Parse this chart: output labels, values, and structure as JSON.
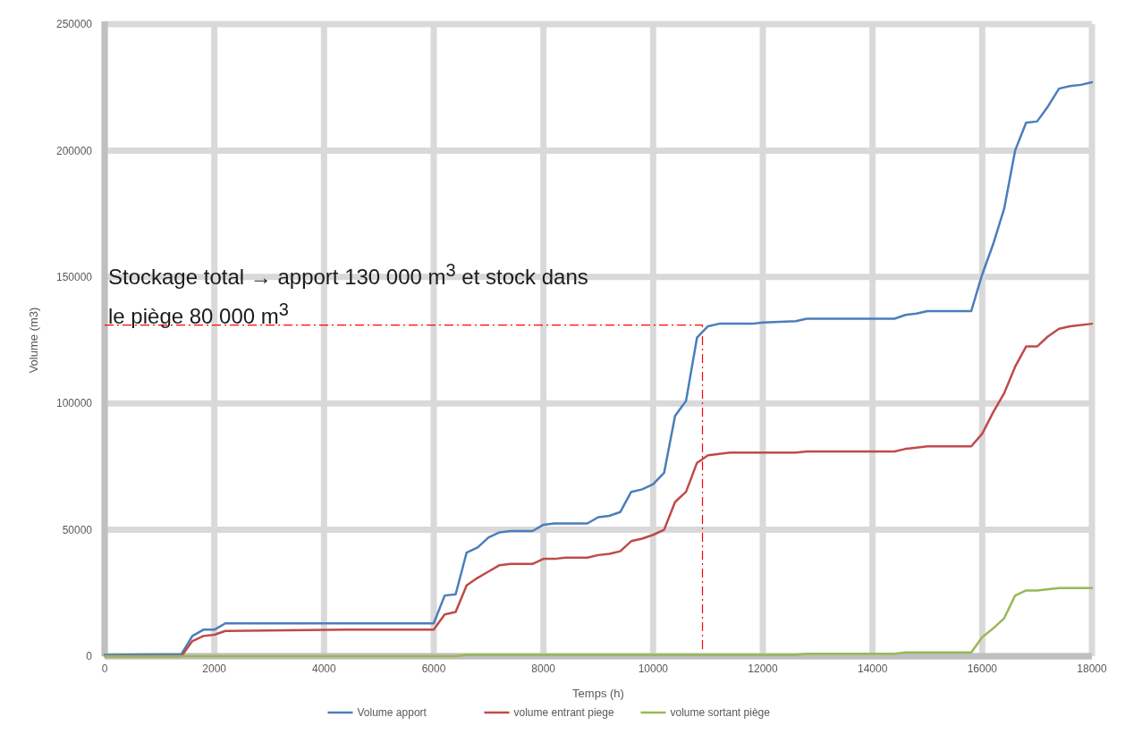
{
  "chart_data": {
    "type": "line",
    "xlabel": "Temps (h)",
    "ylabel": "Volume (m3)",
    "xlim": [
      0,
      18000
    ],
    "xticks": [
      0,
      2000,
      4000,
      6000,
      8000,
      10000,
      12000,
      14000,
      16000,
      18000
    ],
    "ylim": [
      0,
      250000
    ],
    "yticks": [
      0,
      50000,
      100000,
      150000,
      200000,
      250000
    ],
    "grid": true,
    "legend": "bottom",
    "marker": "none",
    "line_style": "solid",
    "annotations": [
      "Stockage total → apport 130 000 m$^{3}$ et stock dans le piège 80 000 m$^{3}$"
    ],
    "ref_lines": [
      {
        "axis": "y",
        "value": 131000,
        "color": "#ff0000",
        "line_style": "dashed"
      },
      {
        "axis": "x",
        "value": 10900,
        "color": "#ff0000",
        "line_style": "dashed"
      }
    ],
    "series": [
      {
        "name": "Volume apport",
        "color": "#4a7ebb",
        "x": [
          0,
          1400,
          1600,
          1800,
          2000,
          2200,
          6000,
          6200,
          6400,
          6600,
          6800,
          7000,
          7200,
          7400,
          7800,
          8000,
          8200,
          8800,
          9000,
          9200,
          9400,
          9600,
          9800,
          10000,
          10200,
          10400,
          10600,
          10800,
          11000,
          11200,
          11800,
          12000,
          12600,
          12800,
          14400,
          14600,
          14800,
          15000,
          15800,
          16000,
          16200,
          16400,
          16600,
          16800,
          17000,
          17200,
          17400,
          17600,
          17800,
          18000
        ],
        "values": [
          500,
          800,
          8000,
          10500,
          10500,
          13000,
          13000,
          24000,
          24500,
          41000,
          43000,
          47000,
          49000,
          49500,
          49500,
          52000,
          52500,
          52500,
          55000,
          55500,
          57000,
          65000,
          66000,
          68000,
          72500,
          95000,
          101000,
          126000,
          130500,
          131500,
          131500,
          132000,
          132500,
          133500,
          133500,
          135000,
          135500,
          136500,
          136500,
          151000,
          163000,
          177000,
          200000,
          211000,
          211500,
          217500,
          224500,
          225500,
          226000,
          227000
        ]
      },
      {
        "name": "volume entrant piege",
        "color": "#be4b48",
        "x": [
          0,
          1400,
          1600,
          1800,
          2000,
          2200,
          4400,
          6000,
          6200,
          6400,
          6600,
          6800,
          7000,
          7200,
          7400,
          7800,
          8000,
          8200,
          8400,
          8800,
          9000,
          9200,
          9400,
          9600,
          9800,
          10000,
          10200,
          10400,
          10600,
          10800,
          11000,
          11400,
          12600,
          12800,
          14400,
          14600,
          15000,
          15800,
          16000,
          16200,
          16400,
          16600,
          16800,
          17000,
          17200,
          17400,
          17600,
          18000
        ],
        "values": [
          0,
          0,
          6000,
          8000,
          8500,
          10000,
          10500,
          10500,
          16500,
          17500,
          28000,
          31000,
          33500,
          36000,
          36500,
          36500,
          38500,
          38500,
          39000,
          39000,
          40000,
          40500,
          41500,
          45500,
          46500,
          48000,
          50000,
          61000,
          65000,
          76500,
          79500,
          80500,
          80500,
          81000,
          81000,
          82000,
          83000,
          83000,
          88000,
          96500,
          104000,
          114500,
          122500,
          122500,
          126500,
          129500,
          130500,
          131500
        ]
      },
      {
        "name": "volume sortant piège",
        "color": "#98b954",
        "x": [
          0,
          6400,
          6600,
          12600,
          12800,
          14400,
          14600,
          15800,
          16000,
          16200,
          16400,
          16600,
          16800,
          17000,
          17400,
          18000
        ],
        "values": [
          0,
          0,
          500,
          500,
          1000,
          1000,
          1500,
          1500,
          7500,
          11000,
          15000,
          24000,
          26000,
          26000,
          27000,
          27000
        ]
      }
    ]
  }
}
